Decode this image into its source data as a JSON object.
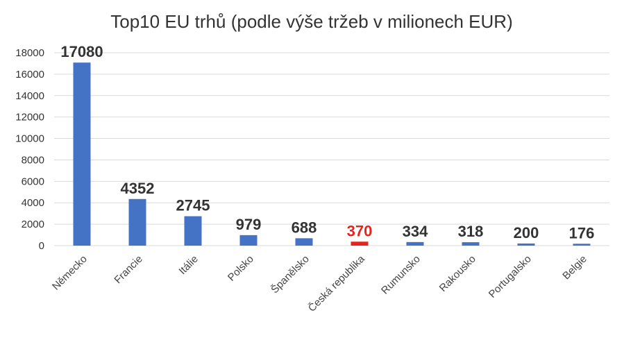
{
  "chart_data": {
    "type": "bar",
    "title": "Top10 EU trhů (podle výše tržeb v milionech EUR)",
    "xlabel": "",
    "ylabel": "",
    "categories": [
      "Německo",
      "Francie",
      "Itálie",
      "Polsko",
      "Španělsko",
      "Česká republika",
      "Rumunsko",
      "Rakousko",
      "Portugalsko",
      "Belgie"
    ],
    "values": [
      17080,
      4352,
      2745,
      979,
      688,
      370,
      334,
      318,
      200,
      176
    ],
    "ylim": [
      0,
      18000
    ],
    "yticks": [
      0,
      2000,
      4000,
      6000,
      8000,
      10000,
      12000,
      14000,
      16000,
      18000
    ],
    "grid": true,
    "legend": "none",
    "colors": {
      "bar": "#4472c4",
      "highlight": "#e8231f",
      "label": "#333333"
    },
    "highlight_category": "Česká republika"
  }
}
